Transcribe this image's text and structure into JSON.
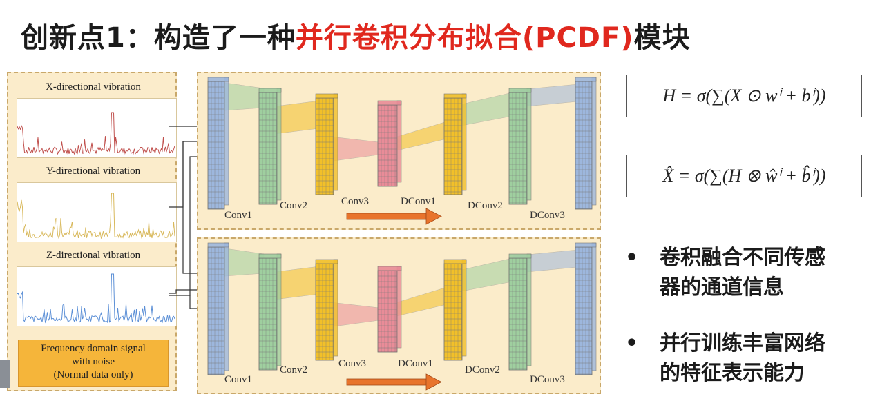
{
  "title": {
    "prefix": "创新点1：构造了一种",
    "highlight": "并行卷积分布拟合(PCDF)",
    "suffix": "模块"
  },
  "signals": [
    {
      "label": "X-directional vibration",
      "color": "#c0504d"
    },
    {
      "label": "Y-directional vibration",
      "color": "#d8b85a"
    },
    {
      "label": "Z-directional vibration",
      "color": "#5b8fd6"
    }
  ],
  "noise_box": {
    "line1": "Frequency domain signal",
    "line2": "with noise",
    "line3": "(Normal data only)"
  },
  "network": {
    "layers": [
      "Conv1",
      "Conv2",
      "Conv3",
      "DConv1",
      "DConv2",
      "DConv3"
    ],
    "colors": {
      "blue": "#9db7dd",
      "green": "#9fcf9f",
      "yellow": "#f2c029",
      "pink": "#e98c98",
      "orange_arrow": "#e8742c"
    }
  },
  "formulas": {
    "encoder": "H = σ(∑(X ⊙ wⁱ + bⁱ))",
    "decoder": "X̂ = σ(∑(H ⊗ ŵⁱ + b̂ⁱ))"
  },
  "bullets": [
    {
      "line1": "卷积融合不同传感",
      "line2": "器的通道信息"
    },
    {
      "line1": "并行训练丰富网络",
      "line2": "的特征表示能力"
    }
  ]
}
